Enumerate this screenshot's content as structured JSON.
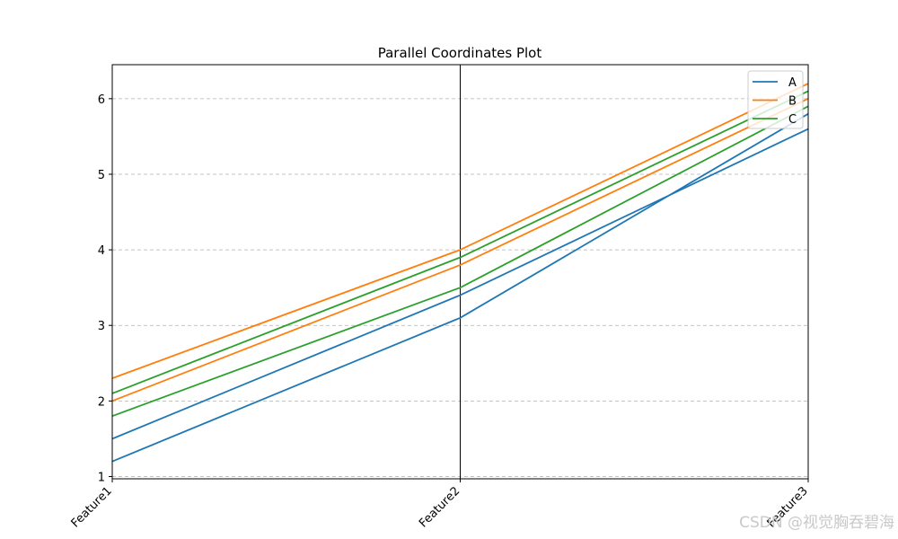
{
  "chart_data": {
    "type": "parallel_coordinates",
    "title": "Parallel Coordinates Plot",
    "categories": [
      "Feature1",
      "Feature2",
      "Feature3"
    ],
    "ylim": [
      0.97,
      6.45
    ],
    "yticks": [
      1,
      2,
      3,
      4,
      5,
      6
    ],
    "grid": "y-dashed",
    "legend": {
      "placement": "top-right",
      "entries": [
        "A",
        "B",
        "C"
      ]
    },
    "series": [
      {
        "name": "A",
        "color": "#1f77b4",
        "values": [
          1.5,
          3.4,
          5.6
        ]
      },
      {
        "name": "A",
        "color": "#1f77b4",
        "values": [
          1.2,
          3.1,
          5.8
        ]
      },
      {
        "name": "B",
        "color": "#ff7f0e",
        "values": [
          2.3,
          4.0,
          6.2
        ]
      },
      {
        "name": "B",
        "color": "#ff7f0e",
        "values": [
          2.0,
          3.8,
          6.0
        ]
      },
      {
        "name": "C",
        "color": "#2ca02c",
        "values": [
          2.1,
          3.9,
          6.1
        ]
      },
      {
        "name": "C",
        "color": "#2ca02c",
        "values": [
          1.8,
          3.5,
          5.9
        ]
      }
    ]
  },
  "watermark": "CSDN @视觉胸吞碧海"
}
